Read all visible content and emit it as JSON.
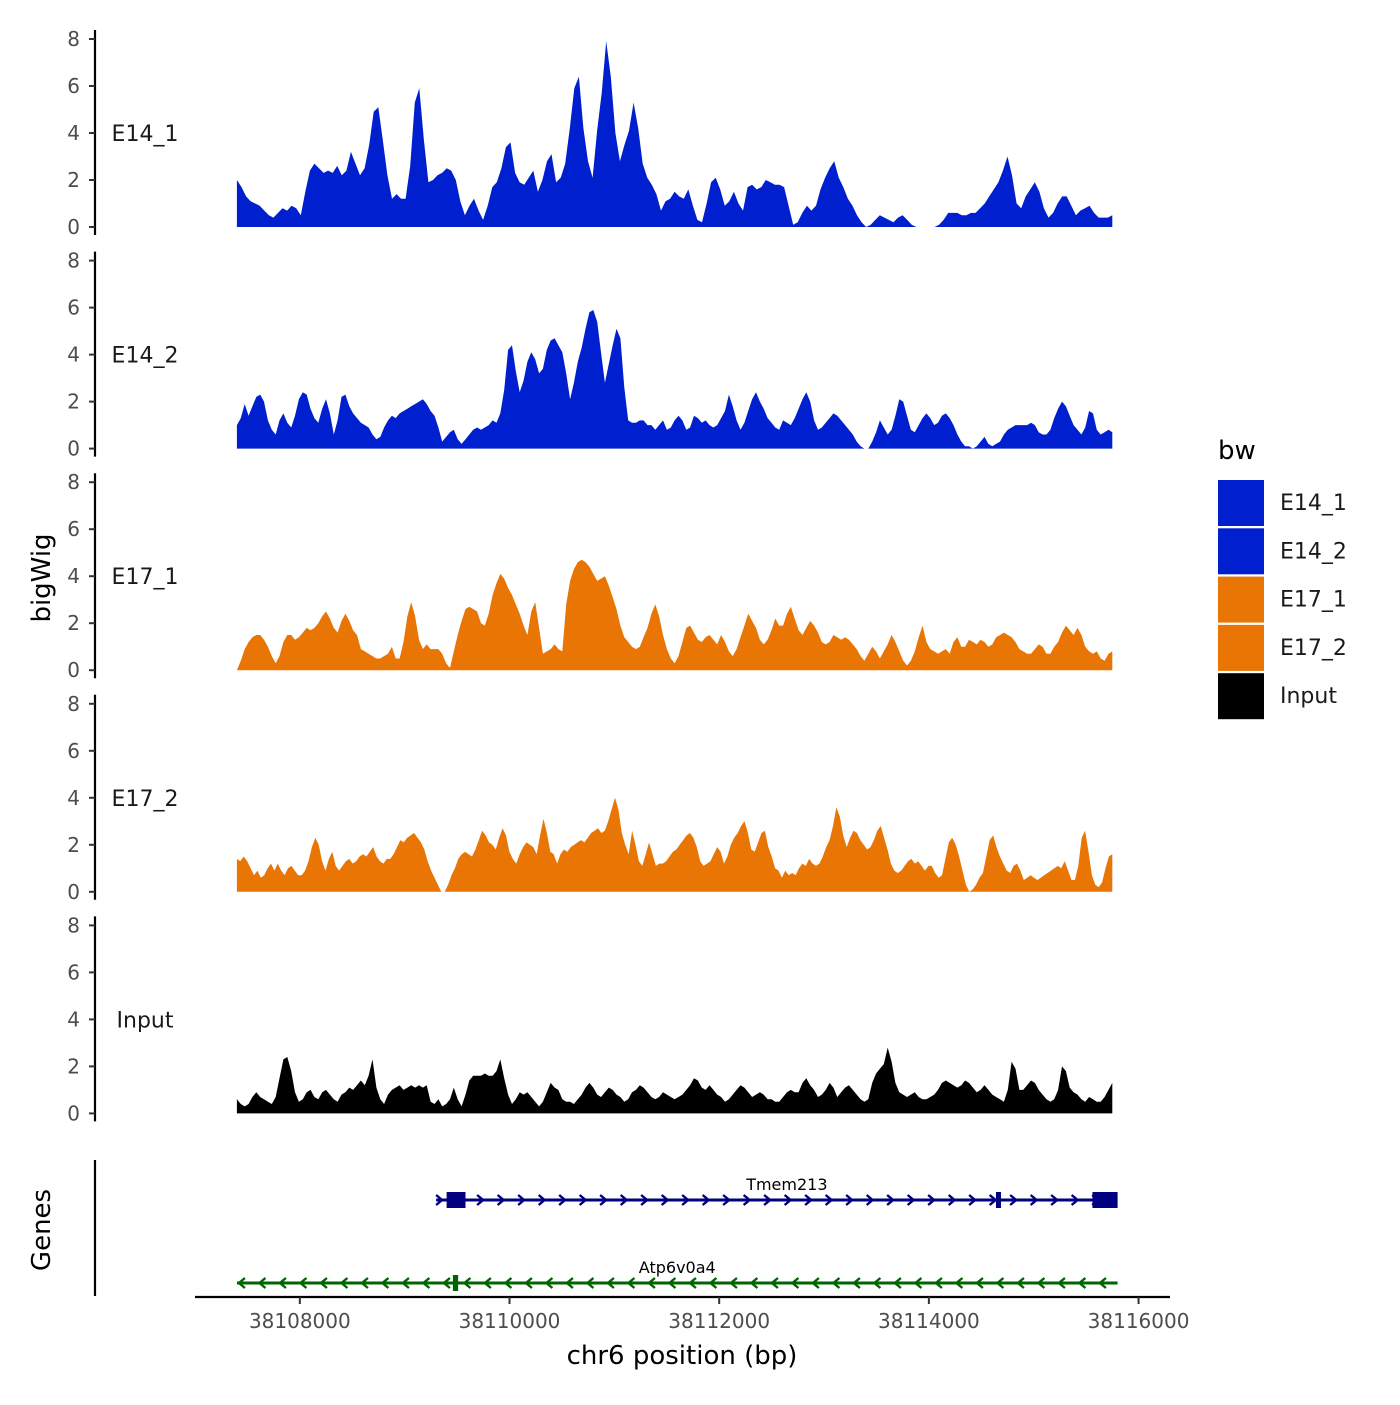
{
  "chart_data": {
    "type": "area",
    "title": "",
    "xlabel": "chr6 position (bp)",
    "ylabel": "bigWig",
    "genes_label": "Genes",
    "xlim": [
      38107000,
      38116300
    ],
    "x_range": [
      38107400,
      38115750
    ],
    "x_ticks": [
      38108000,
      38110000,
      38112000,
      38114000,
      38116000
    ],
    "x_tick_labels": [
      "38108000",
      "38110000",
      "38112000",
      "38114000",
      "38116000"
    ],
    "ylim": [
      0,
      8
    ],
    "y_ticks": [
      0,
      2,
      4,
      6,
      8
    ],
    "y_tick_labels": [
      "0",
      "2",
      "4",
      "6",
      "8"
    ],
    "tracks": [
      {
        "name": "E14_1",
        "color": "#0020CF",
        "values": [
          2.0,
          1.7,
          1.3,
          1.1,
          1.0,
          0.9,
          0.7,
          0.5,
          0.4,
          0.6,
          0.8,
          0.7,
          0.9,
          0.8,
          0.5,
          1.5,
          2.4,
          2.7,
          2.5,
          2.3,
          2.4,
          2.3,
          2.6,
          2.2,
          2.4,
          3.2,
          2.7,
          2.2,
          2.5,
          3.5,
          4.9,
          5.1,
          3.7,
          2.2,
          1.2,
          1.4,
          1.2,
          1.2,
          2.6,
          5.3,
          5.9,
          3.7,
          1.9,
          2.0,
          2.2,
          2.3,
          2.5,
          2.4,
          2.0,
          1.1,
          0.5,
          0.9,
          1.2,
          0.7,
          0.3,
          0.9,
          1.7,
          1.9,
          2.5,
          3.4,
          3.6,
          2.3,
          1.9,
          1.8,
          2.1,
          2.4,
          1.5,
          2.0,
          2.8,
          3.1,
          1.9,
          2.1,
          2.7,
          4.2,
          5.9,
          6.4,
          4.2,
          2.8,
          2.1,
          4.1,
          5.7,
          7.9,
          6.4,
          4.0,
          2.8,
          3.5,
          4.1,
          5.3,
          4.2,
          2.7,
          2.1,
          1.8,
          1.4,
          0.7,
          1.1,
          1.2,
          1.5,
          1.3,
          1.2,
          1.6,
          0.9,
          0.3,
          0.2,
          1.0,
          1.9,
          2.1,
          1.6,
          0.9,
          1.1,
          1.5,
          1.0,
          0.7,
          1.7,
          1.8,
          1.6,
          1.7,
          2.0,
          1.9,
          1.8,
          1.8,
          1.7,
          0.9,
          0.1,
          0.2,
          0.6,
          0.9,
          0.7,
          0.9,
          1.6,
          2.1,
          2.5,
          2.8,
          2.1,
          1.7,
          1.2,
          0.9,
          0.5,
          0.2,
          0.0,
          0.1,
          0.3,
          0.5,
          0.4,
          0.3,
          0.2,
          0.4,
          0.5,
          0.3,
          0.1,
          0.0,
          0.0,
          0.0,
          0.0,
          0.0,
          0.1,
          0.3,
          0.6,
          0.6,
          0.6,
          0.5,
          0.5,
          0.6,
          0.6,
          0.8,
          1.0,
          1.3,
          1.6,
          1.9,
          2.4,
          3.0,
          2.2,
          1.0,
          0.8,
          1.3,
          1.6,
          1.9,
          1.5,
          0.8,
          0.4,
          0.6,
          1.0,
          1.3,
          1.3,
          0.9,
          0.5,
          0.7,
          0.8,
          0.9,
          0.6,
          0.4,
          0.4,
          0.4,
          0.5
        ]
      },
      {
        "name": "E14_2",
        "color": "#0020CF",
        "values": [
          1.0,
          1.3,
          1.9,
          1.4,
          1.8,
          2.2,
          2.3,
          2.0,
          1.2,
          0.8,
          0.6,
          1.2,
          1.5,
          1.1,
          0.9,
          1.4,
          2.1,
          2.4,
          2.3,
          1.7,
          1.3,
          1.1,
          1.7,
          2.1,
          1.5,
          0.6,
          1.2,
          2.2,
          2.3,
          1.8,
          1.5,
          1.3,
          1.1,
          1.0,
          0.9,
          0.6,
          0.4,
          0.5,
          0.9,
          1.2,
          1.4,
          1.3,
          1.5,
          1.6,
          1.7,
          1.8,
          1.9,
          2.0,
          2.1,
          1.9,
          1.6,
          1.4,
          0.9,
          0.3,
          0.5,
          0.7,
          0.8,
          0.4,
          0.2,
          0.4,
          0.6,
          0.8,
          0.9,
          0.8,
          0.9,
          1.0,
          1.2,
          1.1,
          1.5,
          2.5,
          4.2,
          4.4,
          3.3,
          2.4,
          2.9,
          3.7,
          4.1,
          3.8,
          3.2,
          3.4,
          4.2,
          4.6,
          4.7,
          4.4,
          4.1,
          3.2,
          2.1,
          2.8,
          3.7,
          4.3,
          5.1,
          5.8,
          5.9,
          5.4,
          4.1,
          2.8,
          3.6,
          4.4,
          5.1,
          4.7,
          2.6,
          1.2,
          1.1,
          1.1,
          1.2,
          1.2,
          1.0,
          1.0,
          0.8,
          1.0,
          1.2,
          0.8,
          0.9,
          1.2,
          1.4,
          1.2,
          0.8,
          0.9,
          1.4,
          1.3,
          1.1,
          1.2,
          1.0,
          0.9,
          1.0,
          1.3,
          1.6,
          2.3,
          1.8,
          1.2,
          0.8,
          1.1,
          1.6,
          2.1,
          2.4,
          2.0,
          1.7,
          1.3,
          1.1,
          0.9,
          0.8,
          1.2,
          1.1,
          1.0,
          1.3,
          1.7,
          2.1,
          2.4,
          2.0,
          1.2,
          0.8,
          0.9,
          1.1,
          1.3,
          1.5,
          1.4,
          1.2,
          1.0,
          0.8,
          0.6,
          0.3,
          0.1,
          0.0,
          0.0,
          0.3,
          0.7,
          1.2,
          0.9,
          0.6,
          0.8,
          1.4,
          2.1,
          2.0,
          1.4,
          0.8,
          0.7,
          1.0,
          1.3,
          1.5,
          1.3,
          1.0,
          1.1,
          1.4,
          1.5,
          1.3,
          1.0,
          0.6,
          0.3,
          0.1,
          0.1,
          0.0,
          0.1,
          0.3,
          0.5,
          0.2,
          0.1,
          0.2,
          0.3,
          0.6,
          0.8,
          0.9,
          1.0,
          1.0,
          1.0,
          1.0,
          1.1,
          1.0,
          0.7,
          0.6,
          0.6,
          0.8,
          1.3,
          1.7,
          2.0,
          1.8,
          1.4,
          1.0,
          0.8,
          0.6,
          0.9,
          1.6,
          1.5,
          0.8,
          0.6,
          0.7,
          0.8,
          0.7
        ]
      },
      {
        "name": "E17_1",
        "color": "#E87504",
        "values": [
          0.0,
          0.4,
          0.9,
          1.2,
          1.4,
          1.5,
          1.5,
          1.3,
          1.0,
          0.6,
          0.3,
          0.6,
          1.2,
          1.5,
          1.5,
          1.3,
          1.4,
          1.6,
          1.8,
          1.7,
          1.8,
          2.0,
          2.3,
          2.5,
          2.2,
          1.8,
          1.6,
          2.1,
          2.4,
          2.1,
          1.7,
          1.5,
          0.9,
          0.8,
          0.7,
          0.6,
          0.5,
          0.5,
          0.6,
          0.7,
          1.0,
          0.5,
          0.5,
          1.2,
          2.3,
          2.9,
          2.3,
          1.3,
          0.9,
          1.1,
          0.9,
          0.9,
          0.9,
          0.7,
          0.3,
          0.1,
          0.8,
          1.5,
          2.1,
          2.6,
          2.7,
          2.6,
          2.5,
          2.0,
          1.9,
          2.4,
          3.2,
          3.7,
          4.1,
          3.9,
          3.5,
          3.2,
          2.8,
          2.4,
          1.9,
          1.5,
          2.5,
          2.9,
          1.8,
          0.7,
          0.8,
          0.9,
          1.1,
          0.9,
          0.8,
          2.8,
          3.8,
          4.3,
          4.6,
          4.7,
          4.6,
          4.4,
          4.1,
          3.8,
          3.9,
          4.0,
          3.6,
          3.1,
          2.6,
          1.9,
          1.4,
          1.2,
          1.0,
          0.9,
          1.0,
          1.4,
          1.8,
          2.4,
          2.8,
          2.3,
          1.5,
          0.9,
          0.5,
          0.3,
          0.6,
          1.2,
          1.8,
          1.9,
          1.6,
          1.3,
          1.2,
          1.4,
          1.5,
          1.3,
          1.1,
          1.5,
          1.2,
          0.8,
          0.6,
          0.9,
          1.4,
          1.9,
          2.4,
          2.1,
          1.8,
          1.3,
          1.1,
          1.3,
          1.7,
          2.2,
          1.9,
          1.9,
          2.4,
          2.7,
          2.2,
          1.7,
          1.5,
          1.8,
          2.1,
          1.9,
          1.6,
          1.2,
          1.1,
          1.2,
          1.5,
          1.4,
          1.3,
          1.4,
          1.3,
          1.1,
          0.9,
          0.6,
          0.4,
          0.7,
          1.0,
          0.8,
          0.5,
          0.8,
          1.1,
          1.5,
          1.2,
          0.8,
          0.4,
          0.2,
          0.4,
          0.8,
          1.4,
          1.9,
          1.2,
          0.9,
          0.8,
          0.7,
          0.8,
          0.9,
          0.7,
          1.2,
          1.4,
          1.0,
          1.0,
          1.3,
          1.2,
          1.1,
          1.3,
          1.2,
          1.0,
          1.1,
          1.4,
          1.5,
          1.6,
          1.5,
          1.4,
          1.2,
          0.9,
          0.8,
          0.7,
          0.7,
          0.9,
          1.1,
          1.0,
          0.7,
          0.7,
          1.0,
          1.2,
          1.6,
          1.9,
          1.7,
          1.5,
          1.8,
          1.5,
          1.0,
          0.8,
          0.7,
          0.8,
          0.5,
          0.4,
          0.7,
          0.8
        ]
      },
      {
        "name": "E17_2",
        "color": "#E87504",
        "values": [
          1.4,
          1.3,
          1.5,
          1.3,
          1.0,
          0.7,
          0.9,
          0.6,
          0.7,
          1.0,
          1.2,
          0.9,
          1.2,
          0.9,
          0.7,
          1.0,
          1.1,
          0.9,
          0.7,
          0.7,
          0.9,
          1.3,
          1.9,
          2.3,
          2.0,
          1.3,
          0.9,
          1.4,
          1.7,
          1.1,
          0.9,
          1.1,
          1.3,
          1.4,
          1.2,
          1.3,
          1.5,
          1.6,
          1.5,
          1.7,
          1.9,
          1.5,
          1.3,
          1.2,
          1.4,
          1.4,
          1.6,
          1.9,
          2.2,
          2.1,
          2.3,
          2.4,
          2.5,
          2.3,
          2.1,
          1.8,
          1.3,
          0.9,
          0.6,
          0.3,
          0.0,
          0.0,
          0.3,
          0.7,
          1.0,
          1.4,
          1.6,
          1.7,
          1.6,
          1.5,
          1.8,
          2.2,
          2.6,
          2.4,
          2.1,
          2.0,
          1.8,
          2.3,
          2.7,
          2.4,
          1.7,
          1.4,
          1.2,
          1.6,
          1.9,
          2.1,
          2.0,
          1.9,
          1.6,
          2.4,
          3.1,
          2.5,
          1.7,
          1.6,
          1.2,
          1.6,
          1.8,
          1.7,
          1.9,
          2.0,
          2.1,
          2.2,
          2.1,
          2.3,
          2.5,
          2.6,
          2.7,
          2.5,
          2.6,
          3.0,
          3.5,
          4.0,
          3.5,
          2.5,
          2.0,
          1.6,
          2.6,
          2.0,
          1.3,
          1.1,
          1.6,
          2.1,
          1.6,
          1.1,
          1.2,
          1.2,
          1.3,
          1.5,
          1.7,
          1.8,
          2.0,
          2.2,
          2.4,
          2.5,
          2.3,
          1.9,
          1.3,
          1.1,
          1.2,
          1.3,
          1.6,
          1.9,
          1.7,
          1.2,
          1.5,
          2.0,
          2.3,
          2.5,
          2.8,
          3.0,
          2.5,
          1.8,
          1.7,
          2.1,
          2.5,
          2.6,
          1.9,
          1.5,
          1.0,
          0.9,
          0.6,
          0.9,
          0.7,
          0.8,
          0.7,
          1.0,
          1.2,
          1.1,
          1.4,
          1.2,
          1.1,
          1.2,
          1.5,
          1.9,
          2.2,
          2.8,
          3.6,
          3.2,
          2.4,
          1.9,
          2.3,
          2.6,
          2.5,
          2.2,
          2.0,
          1.8,
          1.9,
          2.2,
          2.6,
          2.8,
          2.3,
          1.8,
          1.2,
          0.9,
          0.8,
          0.9,
          1.1,
          1.3,
          1.4,
          1.2,
          1.3,
          1.1,
          0.9,
          1.1,
          1.1,
          0.8,
          0.6,
          0.7,
          1.4,
          2.1,
          2.3,
          2.0,
          1.5,
          0.9,
          0.3,
          0.0,
          0.1,
          0.3,
          0.6,
          0.8,
          1.5,
          2.2,
          2.4,
          1.9,
          1.5,
          1.2,
          0.9,
          0.8,
          1.1,
          1.2,
          0.9,
          0.5,
          0.6,
          0.7,
          0.6,
          0.5,
          0.6,
          0.7,
          0.8,
          0.9,
          1.0,
          1.1,
          1.0,
          1.3,
          0.9,
          0.5,
          0.5,
          1.1,
          2.3,
          2.6,
          1.7,
          0.7,
          0.3,
          0.2,
          0.4,
          1.0,
          1.5,
          1.6
        ]
      },
      {
        "name": "Input",
        "color": "#000000",
        "values": [
          0.6,
          0.4,
          0.3,
          0.4,
          0.7,
          0.9,
          0.7,
          0.6,
          0.5,
          0.4,
          0.7,
          1.5,
          2.3,
          2.4,
          1.8,
          0.9,
          0.5,
          0.6,
          0.9,
          1.0,
          0.7,
          0.6,
          0.9,
          1.0,
          0.8,
          0.6,
          0.5,
          0.8,
          0.9,
          1.1,
          1.0,
          1.2,
          1.4,
          1.2,
          1.6,
          2.3,
          1.1,
          0.6,
          0.4,
          0.8,
          1.0,
          1.1,
          1.2,
          1.0,
          1.1,
          1.2,
          1.1,
          1.2,
          1.1,
          1.2,
          0.5,
          0.4,
          0.6,
          0.3,
          0.4,
          0.6,
          1.1,
          0.6,
          0.3,
          0.8,
          1.4,
          1.6,
          1.6,
          1.6,
          1.7,
          1.6,
          1.6,
          1.8,
          2.3,
          1.5,
          0.8,
          0.4,
          0.6,
          0.9,
          0.8,
          0.9,
          0.7,
          0.5,
          0.3,
          0.5,
          0.9,
          1.3,
          1.1,
          1.0,
          0.6,
          0.5,
          0.5,
          0.4,
          0.6,
          0.8,
          1.1,
          1.3,
          1.1,
          0.8,
          0.7,
          0.9,
          1.1,
          1.0,
          0.8,
          0.7,
          0.5,
          0.6,
          0.9,
          1.0,
          1.2,
          1.1,
          0.9,
          0.7,
          0.6,
          0.7,
          0.9,
          0.8,
          0.7,
          0.6,
          0.7,
          0.8,
          1.0,
          1.2,
          1.5,
          1.4,
          1.1,
          1.0,
          1.2,
          1.0,
          0.8,
          0.7,
          0.5,
          0.6,
          0.8,
          1.0,
          1.2,
          1.1,
          0.9,
          0.7,
          0.8,
          0.9,
          0.8,
          0.6,
          0.6,
          0.5,
          0.5,
          0.7,
          0.9,
          1.0,
          0.9,
          0.9,
          1.3,
          1.5,
          1.2,
          1.0,
          0.7,
          0.8,
          1.0,
          1.3,
          1.1,
          0.7,
          0.9,
          1.1,
          1.2,
          1.0,
          0.8,
          0.6,
          0.5,
          0.6,
          1.3,
          1.7,
          1.9,
          2.1,
          2.8,
          2.2,
          1.3,
          0.9,
          0.8,
          0.7,
          0.8,
          0.9,
          0.7,
          0.6,
          0.6,
          0.7,
          0.8,
          1.0,
          1.3,
          1.4,
          1.3,
          1.2,
          1.1,
          1.2,
          1.4,
          1.3,
          1.1,
          0.9,
          1.0,
          1.2,
          1.0,
          0.8,
          0.7,
          0.6,
          0.5,
          1.0,
          2.2,
          1.9,
          1.0,
          1.0,
          1.2,
          1.4,
          1.3,
          1.0,
          0.8,
          0.6,
          0.5,
          0.6,
          1.0,
          2.0,
          1.8,
          1.1,
          0.9,
          0.8,
          0.6,
          0.5,
          0.7,
          0.6,
          0.5,
          0.5,
          0.7,
          1.0,
          1.3
        ]
      }
    ],
    "genes": [
      {
        "name": "Tmem213",
        "color": "#000080",
        "strand": "+",
        "start": 38109300,
        "end": 38115800,
        "exons": [
          [
            38109400,
            38109580
          ],
          [
            38114640,
            38114680
          ],
          [
            38115560,
            38115800
          ]
        ]
      },
      {
        "name": "Atp6v0a4",
        "color": "#006400",
        "strand": "-",
        "start": 38107400,
        "end": 38115800,
        "exons": [
          [
            38109460,
            38109510
          ]
        ]
      }
    ],
    "legend": {
      "title": "bw",
      "position": "right",
      "entries": [
        {
          "label": "E14_1",
          "color": "#0020CF"
        },
        {
          "label": "E14_2",
          "color": "#0020CF"
        },
        {
          "label": "E17_1",
          "color": "#E87504"
        },
        {
          "label": "E17_2",
          "color": "#E87504"
        },
        {
          "label": "Input",
          "color": "#000000"
        }
      ]
    }
  }
}
